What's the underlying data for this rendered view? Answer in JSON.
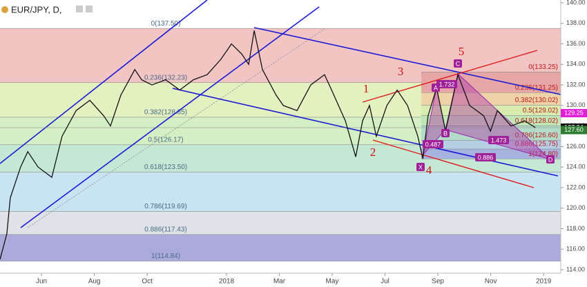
{
  "chart_data": {
    "type": "line",
    "title": "EUR/JPY, D,",
    "x": [
      3.43,
      3.69,
      3.82,
      4.21,
      4.48,
      4.87,
      5.39,
      5.78,
      6.31,
      6.83,
      7.35,
      7.61,
      8.0,
      8.53,
      8.79,
      9.18,
      9.7,
      10.23,
      10.75,
      11.27,
      11.79,
      12.19,
      12.58,
      12.84,
      13.05,
      13.36,
      13.88,
      14.15,
      14.67,
      15.19,
      15.71,
      15.98,
      16.5,
      16.89,
      17.15,
      17.41,
      17.67,
      18.07,
      18.46,
      18.85,
      19.24,
      19.43,
      19.63,
      19.95,
      20.29,
      20.76,
      21.2,
      21.73,
      21.99,
      22.25,
      22.77,
      23.29,
      23.69
    ],
    "values": [
      115,
      117.5,
      121,
      124,
      125.5,
      124,
      123,
      127,
      129.5,
      130.5,
      129,
      128,
      131,
      133.5,
      132.5,
      132,
      132.5,
      131.5,
      132.5,
      133,
      134.5,
      136,
      135,
      134,
      137.3,
      133.5,
      131,
      130,
      129.5,
      132,
      133,
      131.5,
      128.5,
      125,
      128.5,
      130,
      127,
      130,
      131.5,
      130,
      127,
      124.8,
      129,
      131.7,
      127.5,
      133,
      130,
      129,
      127.5,
      129.5,
      128,
      128.5,
      127.84
    ],
    "color": "#111111",
    "xlim": [
      3.43,
      24.65
    ],
    "xticks": [
      {
        "value": 5,
        "label": "Jun"
      },
      {
        "value": 7,
        "label": "Aug"
      },
      {
        "value": 9,
        "label": "Oct"
      },
      {
        "value": 12,
        "label": "2018"
      },
      {
        "value": 14,
        "label": "Mar"
      },
      {
        "value": 16,
        "label": "May"
      },
      {
        "value": 18,
        "label": "Jul"
      },
      {
        "value": 20,
        "label": "Sep"
      },
      {
        "value": 22,
        "label": "Nov"
      },
      {
        "value": 24,
        "label": "2019"
      }
    ],
    "ylim": [
      113.73,
      140.27
    ],
    "yticks": [
      {
        "value": 114,
        "label": "114.00"
      },
      {
        "value": 116,
        "label": "116.00"
      },
      {
        "value": 118,
        "label": "118.00"
      },
      {
        "value": 120,
        "label": "120.00"
      },
      {
        "value": 122,
        "label": "122.00"
      },
      {
        "value": 124,
        "label": "124.00"
      },
      {
        "value": 126,
        "label": "126.00"
      },
      {
        "value": 128,
        "label": "128.00"
      },
      {
        "value": 130,
        "label": "130.00"
      },
      {
        "value": 132,
        "label": "132.00"
      },
      {
        "value": 134,
        "label": "134.00"
      },
      {
        "value": 136,
        "label": "136.00"
      },
      {
        "value": 138,
        "label": "138.00"
      },
      {
        "value": 140,
        "label": "140.00"
      }
    ],
    "fib_left": [
      {
        "label": "0(137.50)",
        "value": 137.5,
        "color": "#f2c4c4"
      },
      {
        "label": "0.236(132.23)",
        "value": 132.23,
        "color": "#e3f0c0"
      },
      {
        "label": "0.382(128.85)",
        "value": 128.85,
        "color": "#d4efc4"
      },
      {
        "label": "0.5(126.17)",
        "value": 126.17,
        "color": "#c4e8d4"
      },
      {
        "label": "0.618(123.50)",
        "value": 123.5,
        "color": "#c8e4f2"
      },
      {
        "label": "0.786(119.69)",
        "value": 119.69,
        "color": "#dfe2e6"
      },
      {
        "label": "0.886(117.43)",
        "value": 117.43,
        "color": "#aaaadb"
      },
      {
        "label": "1(114.84)",
        "value": 114.84,
        "color": "#aaaadb"
      }
    ],
    "fib_right": [
      {
        "label": "0(133.25)",
        "value": 133.25,
        "color": "#e6a6a6"
      },
      {
        "label": "0.236(131.25)",
        "value": 131.25,
        "color": "#f0d2a8"
      },
      {
        "label": "0.382(130.02)",
        "value": 130.02,
        "color": "#d7ecae"
      },
      {
        "label": "0.5(129.02)",
        "value": 129.02,
        "color": "#bfe6b4"
      },
      {
        "label": "0.618(128.02)",
        "value": 128.02,
        "color": "#b2dcc8"
      },
      {
        "label": "0.786(126.60)",
        "value": 126.6,
        "color": "#b6cfe4"
      },
      {
        "label": "0.886(125.75)",
        "value": 125.75,
        "color": "#a8b2de"
      },
      {
        "label": "1(124.80)",
        "value": 124.8,
        "color": "#a8b2de"
      }
    ],
    "price_tags": [
      {
        "value": 129.25,
        "label": "129.25",
        "color": "#e020d8"
      },
      {
        "value": 127.84,
        "label": "127.84",
        "color": "#111111"
      },
      {
        "value": 127.6,
        "label": "127.60",
        "color": "#2e7d32"
      }
    ],
    "waves": [
      "1",
      "2",
      "3",
      "4",
      "5"
    ],
    "pattern_points": [
      "X",
      "A",
      "B",
      "C",
      "D"
    ],
    "ratios": [
      "1.732",
      "0.487",
      "1.473",
      "0.886"
    ]
  }
}
